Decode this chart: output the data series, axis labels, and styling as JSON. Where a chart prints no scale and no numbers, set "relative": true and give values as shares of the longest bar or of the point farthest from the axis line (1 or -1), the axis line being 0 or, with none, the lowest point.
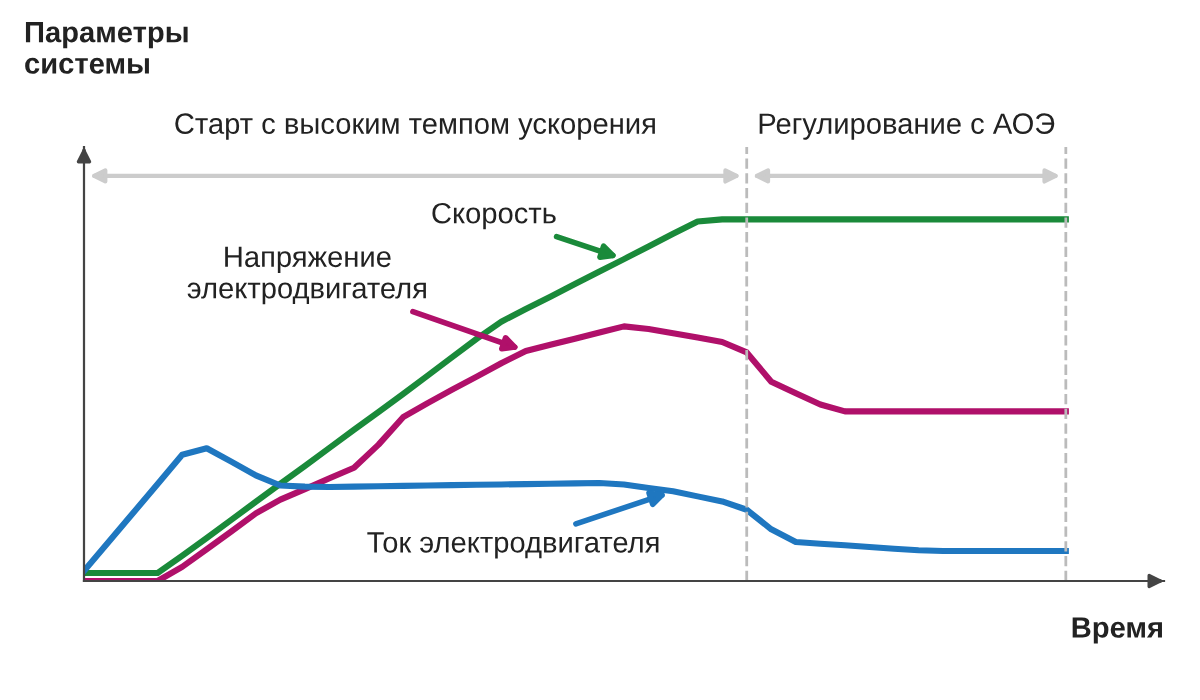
{
  "chart_data": {
    "type": "line",
    "relative": true,
    "ylabel": "Параметры\nсистемы",
    "xlabel": "Время",
    "marker": "none",
    "line_style": "solid",
    "categories": [
      null,
      null,
      null,
      null,
      null,
      null,
      null,
      null,
      null,
      null,
      null,
      null,
      null,
      null,
      null,
      null,
      null,
      null,
      null,
      null,
      null,
      null,
      null,
      null,
      null,
      null,
      null,
      null,
      null,
      null,
      null,
      null,
      null,
      null,
      null,
      null,
      null,
      null,
      null,
      null,
      null
    ],
    "series": [
      {
        "name": "Скорость",
        "color": "#1a8a3a",
        "values": [
          0.022,
          0.022,
          0.022,
          0.022,
          0.07,
          0.119,
          0.169,
          0.219,
          0.269,
          0.318,
          0.368,
          0.418,
          0.467,
          0.517,
          0.568,
          0.619,
          0.67,
          0.717,
          0.752,
          0.786,
          0.821,
          0.856,
          0.89,
          0.925,
          0.96,
          0.994,
          1,
          1,
          1,
          1,
          1,
          1,
          1,
          1,
          1,
          1,
          1,
          1,
          1,
          1,
          1
        ]
      },
      {
        "name": "Напряжение\nэлектродвигателя",
        "color": "#b0106a",
        "values": [
          0,
          0,
          0,
          0,
          0.039,
          0.088,
          0.137,
          0.187,
          0.225,
          0.254,
          0.284,
          0.313,
          0.377,
          0.453,
          0.492,
          0.529,
          0.565,
          0.602,
          0.636,
          0.653,
          0.67,
          0.687,
          0.704,
          0.697,
          0.685,
          0.673,
          0.661,
          0.632,
          0.551,
          0.519,
          0.488,
          0.469,
          0.469,
          0.469,
          0.469,
          0.469,
          0.469,
          0.469,
          0.469,
          0.469,
          0.469
        ]
      },
      {
        "name": "Ток электродвигателя",
        "color": "#1f77c0",
        "values": [
          0.028,
          0.108,
          0.188,
          0.268,
          0.349,
          0.367,
          0.33,
          0.292,
          0.264,
          0.261,
          0.26,
          0.261,
          0.262,
          0.263,
          0.264,
          0.265,
          0.266,
          0.267,
          0.268,
          0.269,
          0.27,
          0.271,
          0.267,
          0.257,
          0.248,
          0.234,
          0.22,
          0.197,
          0.143,
          0.108,
          0.103,
          0.099,
          0.094,
          0.089,
          0.085,
          0.083,
          0.083,
          0.083,
          0.083,
          0.083,
          0.083
        ]
      }
    ],
    "annotations": [
      "Старт с высоким темпом ускорения",
      "Регулирование с АОЭ"
    ]
  }
}
